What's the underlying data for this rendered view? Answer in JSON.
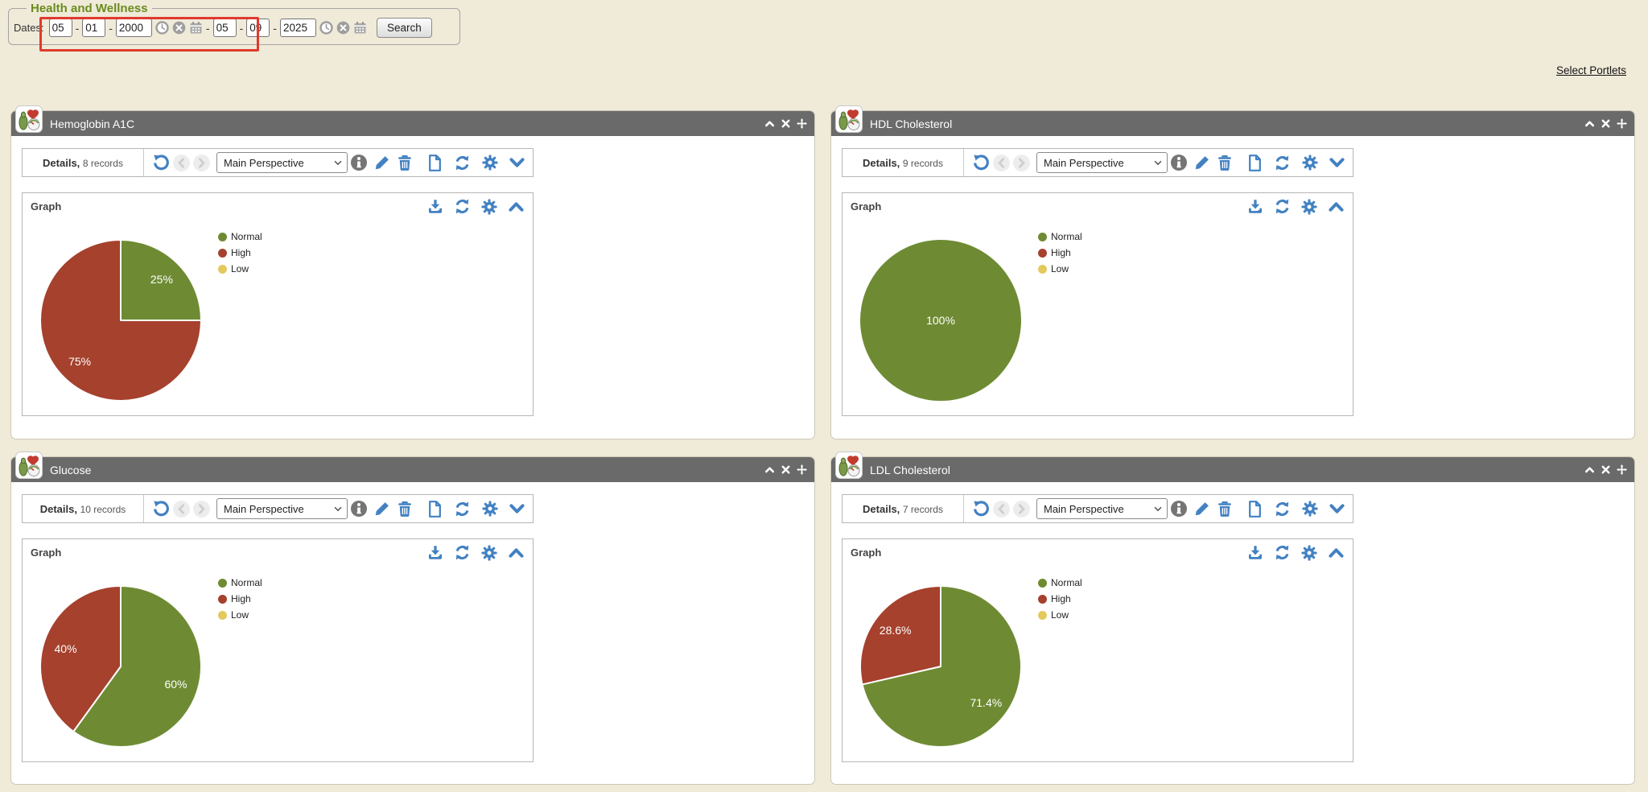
{
  "page_title": "Health and Wellness",
  "header": {
    "legend": "Health and Wellness",
    "dates_label": "Dates:",
    "from": {
      "month": "05",
      "day": "01",
      "year": "2000"
    },
    "to": {
      "month": "05",
      "day": "09",
      "year": "2025"
    },
    "field_icons": [
      "time-icon",
      "clear-icon",
      "calendar-icon"
    ],
    "search_label": "Search",
    "highlight_color": "#e03a2c"
  },
  "select_portlets_label": "Select Portlets",
  "portlet_common": {
    "details_label": "Details,",
    "perspective_value": "Main Perspective",
    "graph_label": "Graph",
    "window_controls": [
      "collapse",
      "close",
      "move"
    ],
    "toolbar_icons": [
      "undo",
      "previous",
      "next",
      "info",
      "edit",
      "delete",
      "new-document",
      "refresh",
      "settings",
      "collapse"
    ],
    "graph_icons": [
      "download",
      "refresh",
      "settings",
      "collapse"
    ]
  },
  "colors": {
    "normal": "#6e8b33",
    "high": "#a5412d",
    "low": "#e3c95e",
    "accent_blue": "#4281c2",
    "header_bar": "#6a6a6a",
    "title_green": "#6a8b1e",
    "page_background": "#f0ead9"
  },
  "portlets": [
    {
      "title": "Hemoglobin A1C",
      "records": "8 records",
      "chart_data": {
        "type": "pie",
        "categories": [
          "Normal",
          "High",
          "Low"
        ],
        "values": [
          25,
          75,
          0
        ],
        "labels": [
          "25%",
          "75%",
          ""
        ],
        "colors": [
          "#6e8b33",
          "#a5412d",
          "#e3c95e"
        ],
        "legend_position": "right",
        "start_angle": "top",
        "direction": "clockwise"
      }
    },
    {
      "title": "HDL Cholesterol",
      "records": "9 records",
      "chart_data": {
        "type": "pie",
        "categories": [
          "Normal",
          "High",
          "Low"
        ],
        "values": [
          100,
          0,
          0
        ],
        "labels": [
          "100%",
          "",
          ""
        ],
        "colors": [
          "#6e8b33",
          "#a5412d",
          "#e3c95e"
        ],
        "legend_position": "right",
        "start_angle": "top",
        "direction": "clockwise"
      }
    },
    {
      "title": "Glucose",
      "records": "10 records",
      "chart_data": {
        "type": "pie",
        "categories": [
          "Normal",
          "High",
          "Low"
        ],
        "values": [
          60,
          40,
          0
        ],
        "labels": [
          "60%",
          "40%",
          ""
        ],
        "colors": [
          "#6e8b33",
          "#a5412d",
          "#e3c95e"
        ],
        "legend_position": "right",
        "start_angle": "top",
        "direction": "clockwise"
      }
    },
    {
      "title": "LDL Cholesterol",
      "records": "7 records",
      "chart_data": {
        "type": "pie",
        "categories": [
          "Normal",
          "High",
          "Low"
        ],
        "values": [
          71.4,
          28.6,
          0
        ],
        "labels": [
          "71.4%",
          "28.6%",
          ""
        ],
        "colors": [
          "#6e8b33",
          "#a5412d",
          "#e3c95e"
        ],
        "legend_position": "right",
        "start_angle": "top",
        "direction": "clockwise"
      }
    }
  ]
}
